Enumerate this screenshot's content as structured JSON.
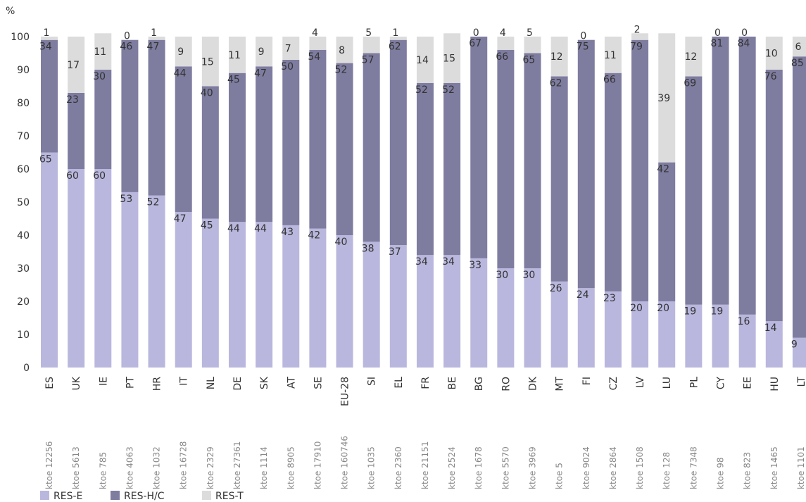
{
  "chart_data": {
    "type": "stacked_bar",
    "y_label": "%",
    "categories": [
      "ES",
      "UK",
      "IE",
      "PT",
      "HR",
      "IT",
      "NL",
      "DE",
      "SK",
      "AT",
      "SE",
      "EU-28",
      "SI",
      "EL",
      "FR",
      "BE",
      "BG",
      "RO",
      "DK",
      "MT",
      "FI",
      "CZ",
      "LV",
      "LU",
      "PL",
      "CY",
      "EE",
      "HU",
      "LT"
    ],
    "sublabels": [
      "ktoe 12256",
      "ktoe 5613",
      "ktoe 785",
      "ktoe 4063",
      "ktoe 1032",
      "ktoe 16728",
      "ktoe 2329",
      "ktoe 27361",
      "ktoe 1114",
      "ktoe 8905",
      "ktoe 17910",
      "ktoe 160746",
      "ktoe 1035",
      "ktoe 2360",
      "ktoe 21151",
      "ktoe 2524",
      "ktoe 1678",
      "ktoe 5570",
      "ktoe 3969",
      "ktoe 5",
      "ktoe 9024",
      "ktoe 2864",
      "ktoe 1508",
      "ktoe 128",
      "ktoe 7348",
      "ktoe 98",
      "ktoe 823",
      "ktoe 1465",
      "ktoe 1101"
    ],
    "series": [
      {
        "name": "RES-E",
        "color": "#b9b7dd",
        "label_color": "#333333",
        "values": [
          65,
          60,
          60,
          53,
          52,
          47,
          45,
          44,
          44,
          43,
          42,
          40,
          38,
          37,
          34,
          34,
          33,
          30,
          30,
          26,
          24,
          23,
          20,
          20,
          19,
          19,
          16,
          14,
          9
        ]
      },
      {
        "name": "RES-H/C",
        "color": "#7e7c9f",
        "label_color": "#ffffff",
        "values": [
          34,
          23,
          30,
          46,
          47,
          44,
          40,
          45,
          47,
          50,
          54,
          52,
          57,
          62,
          52,
          52,
          67,
          66,
          65,
          62,
          75,
          66,
          79,
          42,
          69,
          81,
          84,
          76,
          85
        ]
      },
      {
        "name": "RES-T",
        "color": "#dcdcdc",
        "label_color": "#333333",
        "values": [
          1,
          17,
          11,
          0,
          1,
          9,
          15,
          11,
          9,
          7,
          4,
          8,
          5,
          1,
          14,
          15,
          0,
          4,
          5,
          12,
          0,
          11,
          2,
          39,
          12,
          0,
          0,
          10,
          6
        ]
      }
    ],
    "ylim": [
      0,
      100
    ],
    "yticks": [
      0,
      10,
      20,
      30,
      40,
      50,
      60,
      70,
      80,
      90,
      100
    ],
    "grid": false,
    "legend": "bottom"
  }
}
